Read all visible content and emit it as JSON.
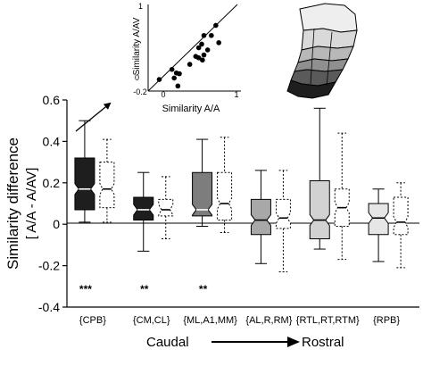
{
  "chart_data": [
    {
      "type": "boxplot",
      "title": "",
      "ylabel_line1": "Similarity difference",
      "ylabel_line2": "[ A/A - A/AV]",
      "xlabel": "",
      "ylim": [
        -0.4,
        0.6
      ],
      "yticks": [
        -0.4,
        -0.2,
        0,
        0.2,
        0.4,
        0.6
      ],
      "ytick_labels": [
        "-0.4",
        "-0.2",
        "0",
        "0.2",
        "0.4",
        "0.6"
      ],
      "grid": false,
      "legend": "none",
      "categories": [
        "{CPB}",
        "{CM,CL}",
        "{ML,A1,MM}",
        "{AL,R,RM}",
        "{RTL,RT,RTM}",
        "{RPB}"
      ],
      "significance": [
        "***",
        "**",
        "**",
        "",
        "",
        ""
      ],
      "groups": [
        {
          "category": "{CPB}",
          "fill": "#1e1e1e",
          "solid": {
            "min": 0.01,
            "q1": 0.07,
            "median": 0.17,
            "q3": 0.32,
            "max": 0.5
          },
          "dotted": {
            "min": 0.01,
            "q1": 0.08,
            "median": 0.17,
            "q3": 0.3,
            "max": 0.41
          }
        },
        {
          "category": "{CM,CL}",
          "fill": "#1e1e1e",
          "solid": {
            "min": -0.13,
            "q1": 0.02,
            "median": 0.07,
            "q3": 0.13,
            "max": 0.25
          },
          "dotted": {
            "min": -0.07,
            "q1": 0.04,
            "median": 0.07,
            "q3": 0.12,
            "max": 0.23
          }
        },
        {
          "category": "{ML,A1,MM}",
          "fill": "#7d7d7d",
          "solid": {
            "min": -0.01,
            "q1": 0.04,
            "median": 0.07,
            "q3": 0.25,
            "max": 0.41
          },
          "dotted": {
            "min": -0.04,
            "q1": 0.02,
            "median": 0.1,
            "q3": 0.25,
            "max": 0.42
          }
        },
        {
          "category": "{AL,R,RM}",
          "fill": "#a8a8a8",
          "solid": {
            "min": -0.19,
            "q1": -0.05,
            "median": 0.02,
            "q3": 0.12,
            "max": 0.26
          },
          "dotted": {
            "min": -0.23,
            "q1": -0.02,
            "median": 0.03,
            "q3": 0.12,
            "max": 0.26
          }
        },
        {
          "category": "{RTL,RT,RTM}",
          "fill": "#d2d2d2",
          "solid": {
            "min": -0.12,
            "q1": -0.07,
            "median": 0.02,
            "q3": 0.21,
            "max": 0.56
          },
          "dotted": {
            "min": -0.17,
            "q1": -0.01,
            "median": 0.08,
            "q3": 0.17,
            "max": 0.44
          }
        },
        {
          "category": "{RPB}",
          "fill": "#e6e6e6",
          "solid": {
            "min": -0.18,
            "q1": -0.05,
            "median": 0.03,
            "q3": 0.1,
            "max": 0.17
          },
          "dotted": {
            "min": -0.21,
            "q1": -0.05,
            "median": 0.01,
            "q3": 0.13,
            "max": 0.2
          }
        }
      ],
      "axis_caption_left": "Caudal",
      "axis_caption_right": "Rostral"
    },
    {
      "type": "scatter",
      "title": "",
      "xlabel": "Similarity A/A",
      "ylabel": "Similarity A/AV",
      "xlim": [
        -0.2,
        1
      ],
      "ylim": [
        -0.2,
        1
      ],
      "xtick_labels": [
        "-0.2",
        "0",
        "1"
      ],
      "ytick_labels": [
        "1",
        "0",
        "-0.2"
      ],
      "identity_line": true,
      "points": [
        {
          "x": 0.71,
          "y": 0.71
        },
        {
          "x": 0.55,
          "y": 0.57
        },
        {
          "x": 0.65,
          "y": 0.57
        },
        {
          "x": 0.75,
          "y": 0.47
        },
        {
          "x": 0.52,
          "y": 0.45
        },
        {
          "x": 0.48,
          "y": 0.4
        },
        {
          "x": 0.6,
          "y": 0.37
        },
        {
          "x": 0.44,
          "y": 0.28
        },
        {
          "x": 0.48,
          "y": 0.26
        },
        {
          "x": 0.55,
          "y": 0.3
        },
        {
          "x": 0.53,
          "y": 0.23
        },
        {
          "x": 0.36,
          "y": 0.17
        },
        {
          "x": 0.12,
          "y": 0.1
        },
        {
          "x": 0.18,
          "y": 0.05
        },
        {
          "x": 0.22,
          "y": 0.04
        },
        {
          "x": 0.15,
          "y": -0.02
        },
        {
          "x": -0.05,
          "y": -0.04
        },
        {
          "x": 0.2,
          "y": -0.13
        }
      ]
    }
  ],
  "brain_map": {
    "caption": "",
    "region_fills": [
      "#eeeeee",
      "#d9d9d9",
      "#b8b8b8",
      "#8f8f8f",
      "#5a5a5a",
      "#1e1e1e"
    ]
  }
}
